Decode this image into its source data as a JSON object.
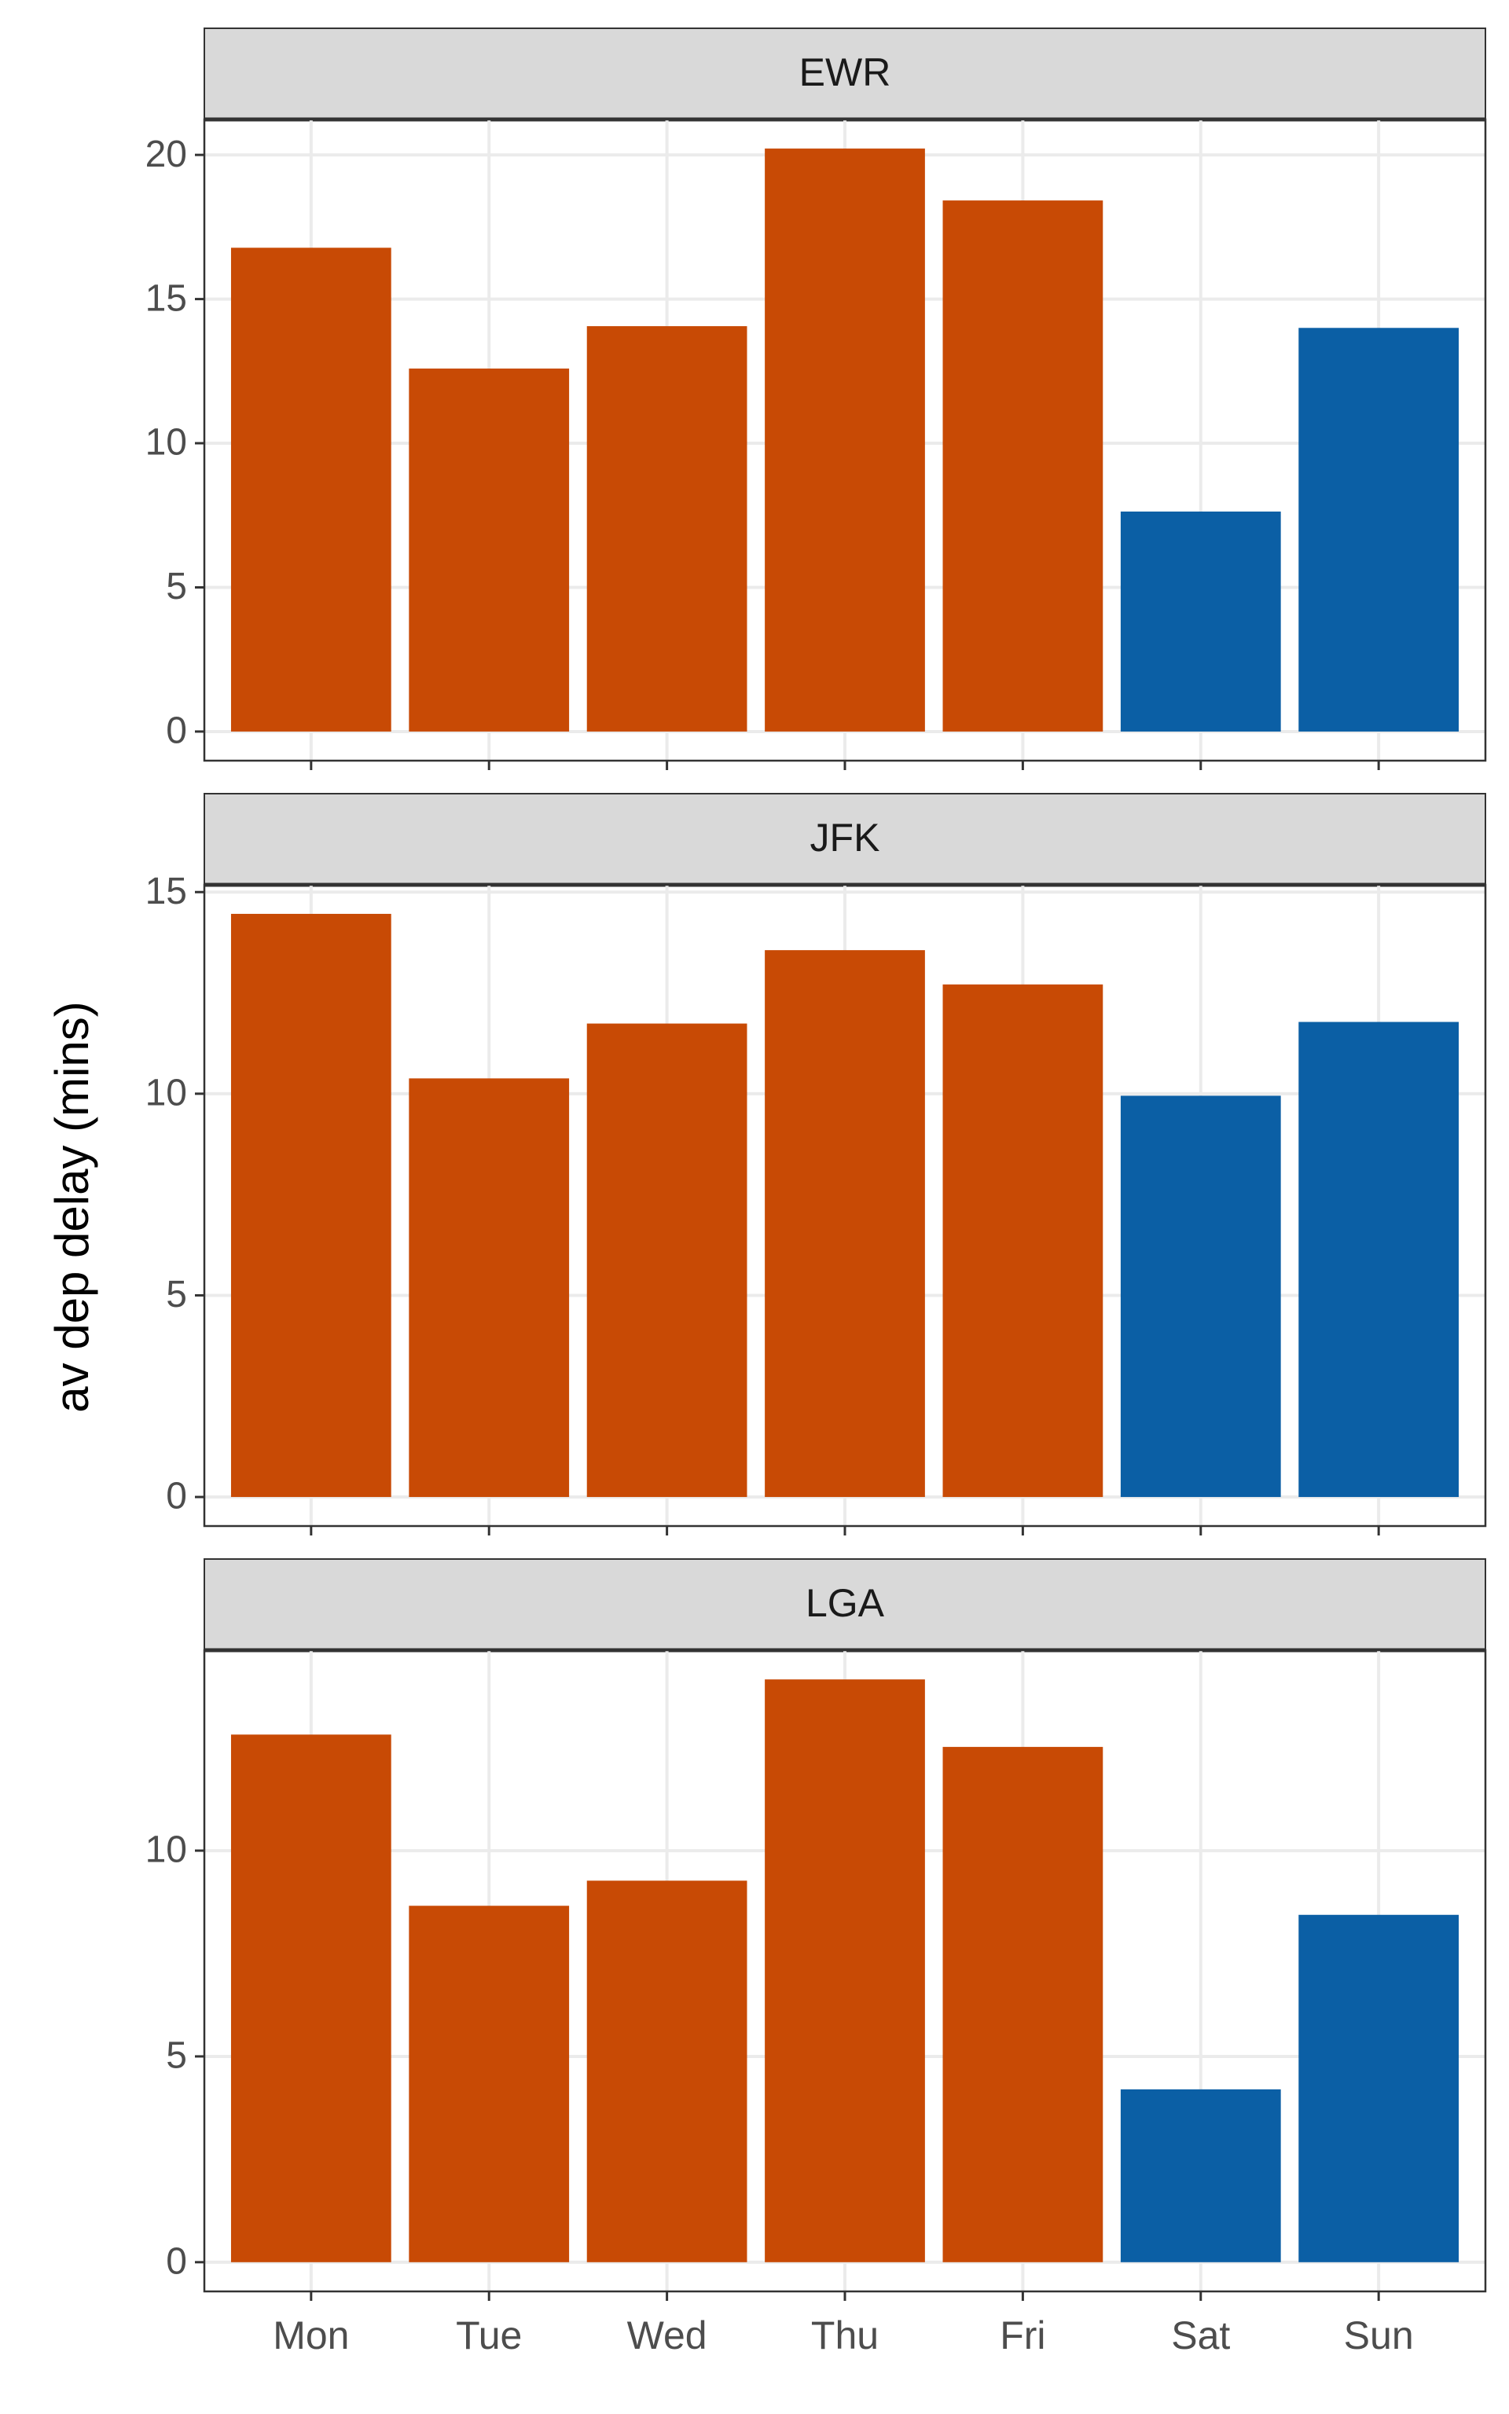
{
  "chart_data": {
    "type": "bar",
    "ylabel": "av dep delay (mins)",
    "categories": [
      "Mon",
      "Tue",
      "Wed",
      "Thu",
      "Fri",
      "Sat",
      "Sun"
    ],
    "colors": [
      "#c84a05",
      "#c84a05",
      "#c84a05",
      "#c84a05",
      "#c84a05",
      "#0b5fa5",
      "#0b5fa5"
    ],
    "grid": true,
    "facets": [
      {
        "title": "EWR",
        "values": [
          16.78,
          12.59,
          14.06,
          20.22,
          18.42,
          7.63,
          14.0
        ],
        "ylim": [
          -1.01,
          21.23
        ],
        "yticks": [
          0,
          5,
          10,
          15,
          20
        ]
      },
      {
        "title": "JFK",
        "values": [
          14.46,
          10.38,
          11.74,
          13.56,
          12.71,
          9.95,
          11.78
        ],
        "ylim": [
          -0.72,
          15.18
        ],
        "yticks": [
          0,
          5,
          10,
          15
        ]
      },
      {
        "title": "LGA",
        "values": [
          12.82,
          8.66,
          9.27,
          14.16,
          12.52,
          4.2,
          8.44
        ],
        "ylim": [
          -0.71,
          14.87
        ],
        "yticks": [
          0,
          5,
          10
        ]
      }
    ]
  }
}
